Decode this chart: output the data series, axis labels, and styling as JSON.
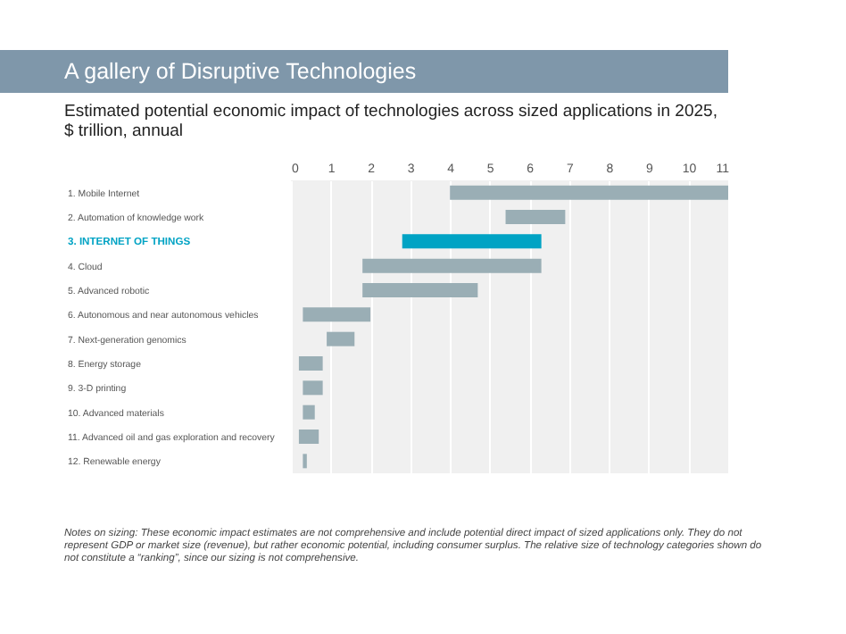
{
  "chart_data": {
    "type": "bar",
    "orientation": "horizontal",
    "title": "A gallery of Disruptive Technologies",
    "subtitle": "Estimated potential economic impact of technologies across sized applications in 2025,\n$ trillion, annual",
    "categories": [
      "1. Mobile Internet",
      "2. Automation of knowledge work",
      "3. INTERNET OF THINGS",
      "4. Cloud",
      "5. Advanced robotic",
      "6. Autonomous and near autonomous vehicles",
      "7. Next-generation genomics",
      "8. Energy storage",
      "9. 3-D printing",
      "10. Advanced materials",
      "11. Advanced oil and gas exploration and recovery",
      "12. Renewable energy"
    ],
    "base": [
      4.0,
      5.4,
      2.8,
      1.8,
      1.8,
      0.3,
      0.9,
      0.2,
      0.3,
      0.3,
      0.2,
      0.3
    ],
    "values": [
      7.0,
      1.5,
      3.5,
      4.5,
      2.9,
      1.7,
      0.7,
      0.6,
      0.5,
      0.3,
      0.5,
      0.1
    ],
    "colors": [
      "#9aaeb5",
      "#9aaeb5",
      "#00a3c4",
      "#9aaeb5",
      "#9aaeb5",
      "#9aaeb5",
      "#9aaeb5",
      "#9aaeb5",
      "#9aaeb5",
      "#9aaeb5",
      "#9aaeb5",
      "#9aaeb5"
    ],
    "xlim": [
      0,
      11
    ],
    "xticks": [
      0,
      1,
      2,
      3,
      4,
      5,
      6,
      7,
      8,
      9,
      10,
      11
    ],
    "grid": "x",
    "annotations": [
      "Notes on sizing: These economic impact estimates are not comprehensive and include potential direct impact of sized applications only. They do not represent GDP or market size (revenue), but rather economic potential, including consumer surplus. The relative size of technology categories shown do not constitute a “ranking”, since our sizing is not comprehensive."
    ]
  }
}
